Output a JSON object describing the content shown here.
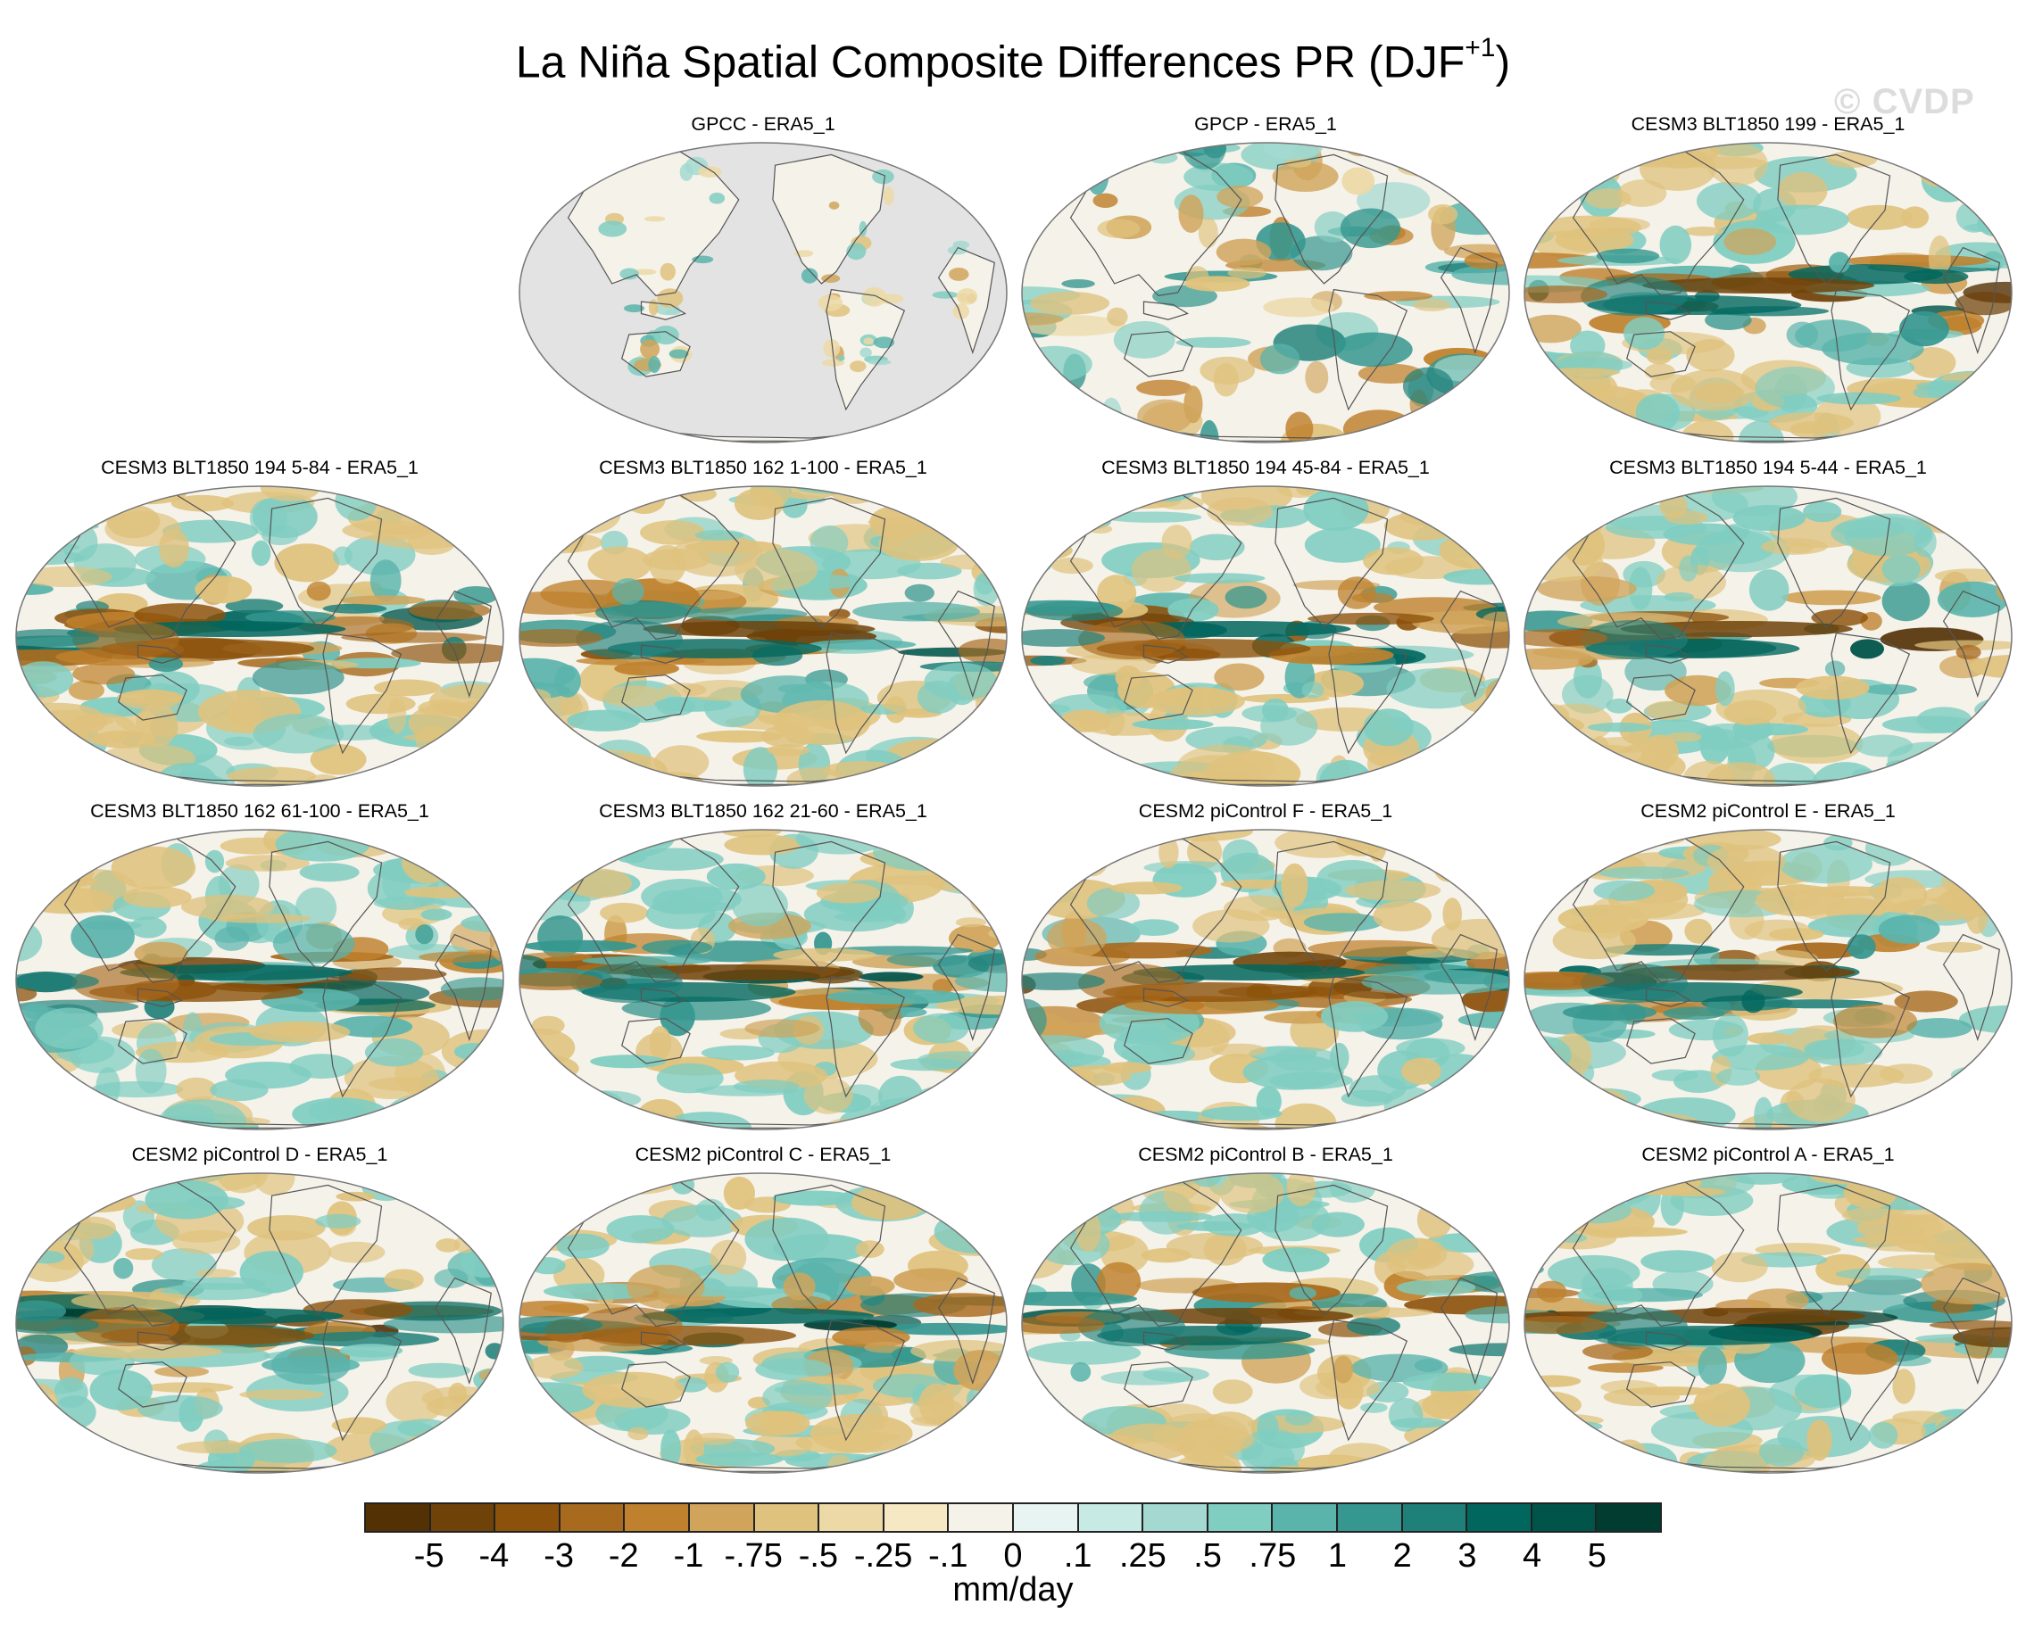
{
  "title": {
    "main": "La Niña Spatial Composite Differences PR (DJF",
    "superscript": "+1",
    "close": ")"
  },
  "watermark": "© CVDP",
  "panels": [
    {
      "label": "GPCC - ERA5_1",
      "style": "land-only"
    },
    {
      "label": "GPCP - ERA5_1",
      "style": "weak"
    },
    {
      "label": "CESM3 BLT1850 199 - ERA5_1",
      "style": "strong"
    },
    {
      "label": "CESM3 BLT1850 194 5-84 - ERA5_1",
      "style": "strong"
    },
    {
      "label": "CESM3 BLT1850 162 1-100 - ERA5_1",
      "style": "strong"
    },
    {
      "label": "CESM3 BLT1850 194 45-84 - ERA5_1",
      "style": "strong"
    },
    {
      "label": "CESM3 BLT1850 194 5-44 - ERA5_1",
      "style": "strong"
    },
    {
      "label": "CESM3 BLT1850 162 61-100 - ERA5_1",
      "style": "strong"
    },
    {
      "label": "CESM3 BLT1850 162 21-60 - ERA5_1",
      "style": "strong"
    },
    {
      "label": "CESM2 piControl F - ERA5_1",
      "style": "strong"
    },
    {
      "label": "CESM2 piControl E - ERA5_1",
      "style": "strong"
    },
    {
      "label": "CESM2 piControl D - ERA5_1",
      "style": "strong"
    },
    {
      "label": "CESM2 piControl C - ERA5_1",
      "style": "strong"
    },
    {
      "label": "CESM2 piControl B - ERA5_1",
      "style": "strong"
    },
    {
      "label": "CESM2 piControl A - ERA5_1",
      "style": "strong"
    }
  ],
  "colorbar": {
    "units": "mm/day",
    "tick_labels": [
      "-5",
      "-4",
      "-3",
      "-2",
      "-1",
      "-.75",
      "-.5",
      "-.25",
      "-.1",
      "0",
      ".1",
      ".25",
      ".5",
      ".75",
      "1",
      "2",
      "3",
      "4",
      "5"
    ],
    "colors": [
      "#543005",
      "#6f4209",
      "#8c510a",
      "#a86a1e",
      "#bf812d",
      "#d0a45a",
      "#dfc27d",
      "#ecd9a6",
      "#f6e8c3",
      "#f5f2ea",
      "#e8f4f2",
      "#c7eae5",
      "#a3d9d0",
      "#80cdc1",
      "#5ab4ac",
      "#35978f",
      "#1f8079",
      "#01665e",
      "#01544a",
      "#003c30"
    ]
  },
  "map_colors": {
    "ocean_missing": "#e3e3e3",
    "coast": "#555555",
    "frame": "#777777"
  }
}
